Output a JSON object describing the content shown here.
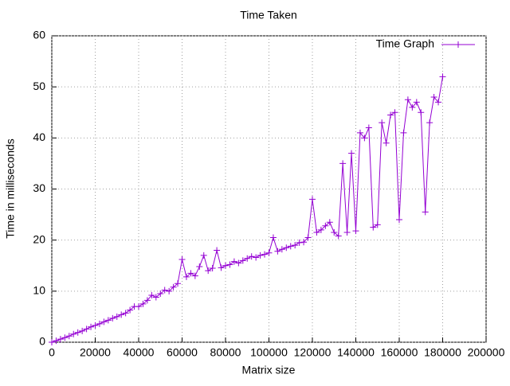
{
  "chart_data": {
    "type": "line",
    "title": "Time Taken",
    "x_label": "Matrix size",
    "y_label": "Time in milliseconds",
    "xlim": [
      0,
      200000
    ],
    "xticks": [
      0,
      20000,
      40000,
      60000,
      80000,
      100000,
      120000,
      140000,
      160000,
      180000,
      200000
    ],
    "ylim": [
      0,
      60
    ],
    "yticks": [
      0,
      10,
      20,
      30,
      40,
      50,
      60
    ],
    "grid": true,
    "legend": "top-right",
    "x": [
      0,
      2000,
      4000,
      6000,
      8000,
      10000,
      12000,
      14000,
      16000,
      18000,
      20000,
      22000,
      24000,
      26000,
      28000,
      30000,
      32000,
      34000,
      36000,
      38000,
      40000,
      42000,
      44000,
      46000,
      48000,
      50000,
      52000,
      54000,
      56000,
      58000,
      60000,
      62000,
      64000,
      66000,
      68000,
      70000,
      72000,
      74000,
      76000,
      78000,
      80000,
      82000,
      84000,
      86000,
      88000,
      90000,
      92000,
      94000,
      96000,
      98000,
      100000,
      102000,
      104000,
      106000,
      108000,
      110000,
      112000,
      114000,
      116000,
      118000,
      120000,
      122000,
      124000,
      126000,
      128000,
      130000,
      132000,
      134000,
      136000,
      138000,
      140000,
      142000,
      144000,
      146000,
      148000,
      150000,
      152000,
      154000,
      156000,
      158000,
      160000,
      162000,
      164000,
      166000,
      168000,
      170000,
      172000,
      174000,
      176000,
      178000,
      180000
    ],
    "series": [
      {
        "name": "Time Graph",
        "color": "#9400d3",
        "values": [
          0,
          0.3,
          0.6,
          0.9,
          1.2,
          1.6,
          1.9,
          2.2,
          2.6,
          3.0,
          3.3,
          3.6,
          4.0,
          4.3,
          4.7,
          5.0,
          5.4,
          5.7,
          6.3,
          7.0,
          7.0,
          7.5,
          8.2,
          9.2,
          8.8,
          9.5,
          10.2,
          10.0,
          10.8,
          11.5,
          16.2,
          12.8,
          13.5,
          13.0,
          14.8,
          17.0,
          14.0,
          14.5,
          18.0,
          14.6,
          15.0,
          15.2,
          15.8,
          15.5,
          16.0,
          16.4,
          16.8,
          16.6,
          17.0,
          17.2,
          17.5,
          20.5,
          17.8,
          18.2,
          18.5,
          18.8,
          19.0,
          19.5,
          19.6,
          20.5,
          28.0,
          21.5,
          22.0,
          22.8,
          23.5,
          21.5,
          20.8,
          35.0,
          21.5,
          37.0,
          21.8,
          41.0,
          40.0,
          42.0,
          22.5,
          23.0,
          43.0,
          39.0,
          44.5,
          45.0,
          24.0,
          41.0,
          47.5,
          46.0,
          47.0,
          45.0,
          25.5,
          43.0,
          48.0,
          47.0,
          52.0
        ]
      }
    ]
  }
}
